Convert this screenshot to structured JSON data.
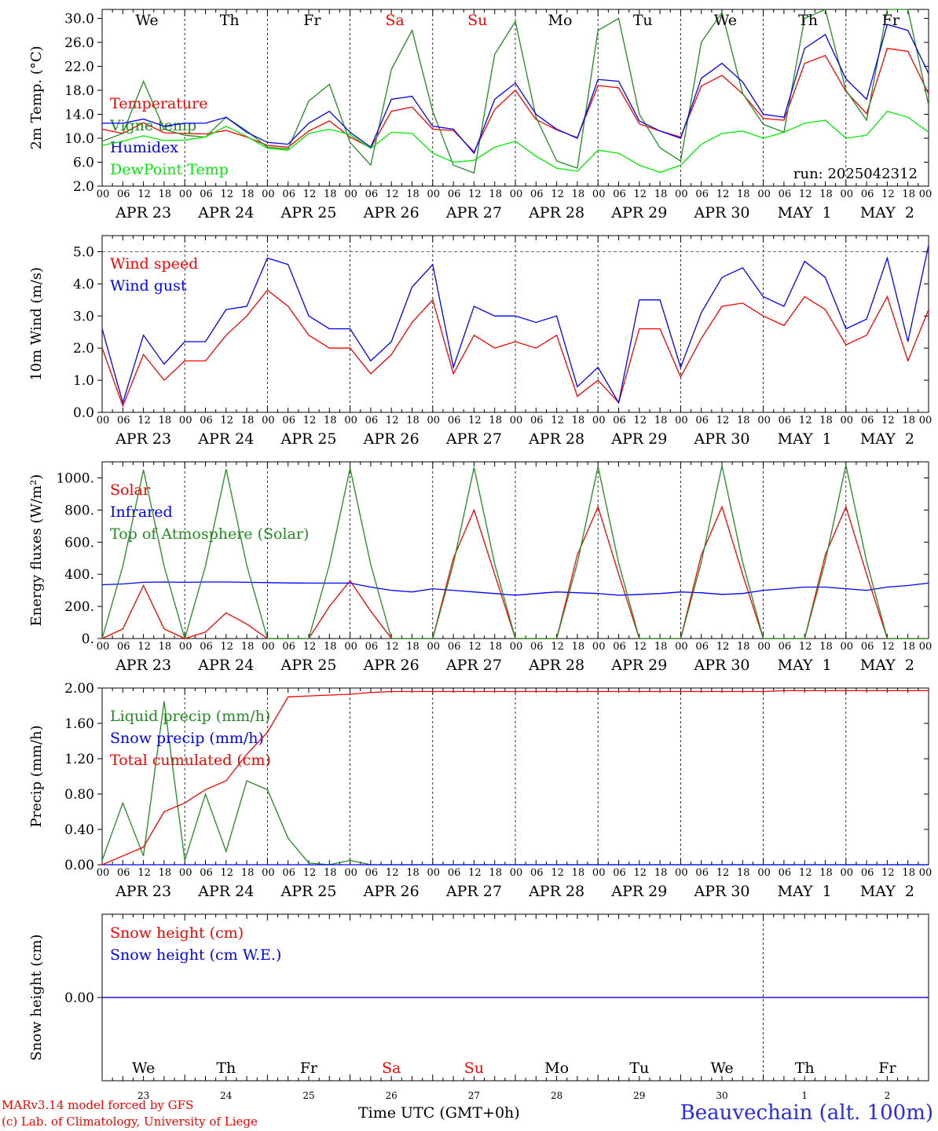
{
  "chart_data": {
    "type": "line",
    "run_label": "run: 2025042312",
    "day_letters": [
      "We",
      "Th",
      "Fr",
      "Sa",
      "Su",
      "Mo",
      "Tu",
      "We",
      "Th",
      "Fr"
    ],
    "weekend_color": "#ff0000",
    "date_labels": [
      "APR 23",
      "APR 24",
      "APR 25",
      "APR 26",
      "APR 27",
      "APR 28",
      "APR 29",
      "APR 30",
      "MAY  1",
      "MAY  2"
    ],
    "day_numbers": [
      "23",
      "24",
      "25",
      "26",
      "27",
      "28",
      "29",
      "30",
      "1",
      "2"
    ],
    "hour_ticks": [
      "00",
      "06",
      "12",
      "18"
    ],
    "hour_end_label": "00",
    "x_hours": [
      0,
      6,
      12,
      18,
      24,
      30,
      36,
      42,
      48,
      54,
      60,
      66,
      72,
      78,
      84,
      90,
      96,
      102,
      108,
      114,
      120,
      126,
      132,
      138,
      144,
      150,
      156,
      162,
      168,
      174,
      180,
      186,
      192,
      198,
      204,
      210,
      216,
      222,
      228,
      234,
      240
    ],
    "panels": [
      {
        "ylabel": "2m Temp. (°C)",
        "ylim": [
          2,
          31.5
        ],
        "ytick_values": [
          2,
          6,
          10,
          14,
          18,
          22,
          26,
          30
        ],
        "ytick_labels": [
          "2.0",
          "6.0",
          "10.0",
          "14.0",
          "18.0",
          "22.0",
          "26.0",
          "30.0"
        ],
        "series": [
          {
            "name": "Temperature",
            "color": "#ff0000",
            "values": [
              11.5,
              10.8,
              12.6,
              10.9,
              10.8,
              10.7,
              11.3,
              10.2,
              8.8,
              8.5,
              11.2,
              12.9,
              10.2,
              8.4,
              14.5,
              15.2,
              11.5,
              11.3,
              7.7,
              14.8,
              18.0,
              13.1,
              11.4,
              10.1,
              18.8,
              18.4,
              12.4,
              11.2,
              10.2,
              18.7,
              20.5,
              17.4,
              13.3,
              13.0,
              22.5,
              23.8,
              17.8,
              14.1,
              25.0,
              24.5,
              17.4
            ]
          },
          {
            "name": "Vigne temp",
            "color": "#228b22",
            "values": [
              9.5,
              10.8,
              19.5,
              11.5,
              10.5,
              10.2,
              13.5,
              11.2,
              8.5,
              8.2,
              16.2,
              19.0,
              9.3,
              5.5,
              21.5,
              28.0,
              14.5,
              5.5,
              4.2,
              24.0,
              29.5,
              13.5,
              6.2,
              5.0,
              28.0,
              30.0,
              14.0,
              8.4,
              6.2,
              26.0,
              31.0,
              17.5,
              12.3,
              11.0,
              30.0,
              31.5,
              18.0,
              13.0,
              31.5,
              31.5,
              15.5
            ]
          },
          {
            "name": "Humidex",
            "color": "#0000ff",
            "values": [
              12.5,
              12.5,
              13.2,
              12.0,
              12.5,
              12.5,
              13.5,
              11.0,
              9.3,
              9.0,
              12.5,
              14.5,
              11.0,
              8.5,
              16.5,
              17.0,
              12.0,
              11.5,
              7.5,
              16.5,
              19.2,
              14.0,
              11.5,
              10.0,
              19.8,
              19.5,
              12.9,
              11.2,
              10.0,
              20.0,
              22.5,
              19.4,
              14.0,
              13.5,
              25.0,
              27.3,
              19.9,
              16.5,
              29.0,
              28.0,
              20.8
            ]
          },
          {
            "name": "DewPoint Temp",
            "color": "#00ee00",
            "values": [
              8.8,
              9.5,
              10.4,
              9.6,
              9.7,
              10.2,
              12.0,
              10.3,
              8.3,
              8.0,
              10.8,
              11.5,
              10.6,
              8.3,
              11.0,
              10.8,
              7.5,
              6.0,
              6.3,
              8.5,
              9.5,
              7.0,
              5.0,
              4.5,
              8.0,
              7.5,
              5.5,
              4.3,
              5.5,
              9.0,
              10.8,
              11.2,
              10.0,
              11.0,
              12.5,
              13.0,
              10.0,
              10.5,
              14.5,
              13.5,
              11.0
            ]
          }
        ]
      },
      {
        "ylabel": "10m Wind (m/s)",
        "ylim": [
          0,
          5.5
        ],
        "ytick_values": [
          0,
          1,
          2,
          3,
          4,
          5
        ],
        "ytick_labels": [
          "0.0",
          "1.0",
          "2.0",
          "3.0",
          "4.0",
          "5.0"
        ],
        "dashed_line": 5.0,
        "series": [
          {
            "name": "Wind speed",
            "color": "#ff0000",
            "values": [
              2.0,
              0.2,
              1.8,
              1.0,
              1.6,
              1.6,
              2.4,
              3.0,
              3.8,
              3.3,
              2.4,
              2.0,
              2.0,
              1.2,
              1.8,
              2.8,
              3.5,
              1.2,
              2.4,
              2.0,
              2.2,
              2.0,
              2.4,
              0.5,
              1.0,
              0.3,
              2.6,
              2.6,
              1.1,
              2.3,
              3.3,
              3.4,
              3.0,
              2.7,
              3.6,
              3.2,
              2.1,
              2.4,
              3.6,
              1.6,
              3.2
            ]
          },
          {
            "name": "Wind gust",
            "color": "#0000ff",
            "values": [
              2.6,
              0.3,
              2.4,
              1.5,
              2.2,
              2.2,
              3.2,
              3.3,
              4.8,
              4.6,
              3.0,
              2.6,
              2.6,
              1.6,
              2.2,
              3.9,
              4.6,
              1.4,
              3.3,
              3.0,
              3.0,
              2.8,
              3.0,
              0.8,
              1.4,
              0.3,
              3.5,
              3.5,
              1.4,
              3.1,
              4.2,
              4.5,
              3.6,
              3.3,
              4.7,
              4.2,
              2.6,
              2.9,
              4.8,
              2.2,
              5.2
            ]
          }
        ]
      },
      {
        "ylabel": "Energy fluxes (W/m²)",
        "ylim": [
          0,
          1100
        ],
        "ytick_values": [
          0,
          200,
          400,
          600,
          800,
          1000
        ],
        "ytick_labels": [
          "0.",
          "200.",
          "400.",
          "600.",
          "800.",
          "1000."
        ],
        "series": [
          {
            "name": "Solar",
            "color": "#ff0000",
            "values": [
              0,
              60,
              330,
              60,
              0,
              40,
              160,
              90,
              0,
              0,
              0,
              200,
              360,
              170,
              0,
              0,
              0,
              500,
              800,
              400,
              0,
              0,
              0,
              520,
              820,
              400,
              0,
              0,
              0,
              520,
              820,
              400,
              0,
              0,
              0,
              520,
              820,
              400,
              0,
              0,
              0
            ]
          },
          {
            "name": "Infrared",
            "color": "#0000ff",
            "values": [
              335,
              340,
              350,
              352,
              350,
              352,
              352,
              350,
              348,
              346,
              345,
              345,
              345,
              320,
              300,
              290,
              310,
              300,
              290,
              280,
              270,
              280,
              290,
              285,
              280,
              270,
              275,
              280,
              290,
              285,
              275,
              280,
              300,
              310,
              320,
              320,
              310,
              300,
              320,
              330,
              345
            ]
          },
          {
            "name": "Top of Atmosphere (Solar)",
            "color": "#228b22",
            "values": [
              0,
              450,
              1050,
              450,
              0,
              450,
              1055,
              455,
              0,
              0,
              0,
              460,
              1060,
              460,
              0,
              0,
              0,
              465,
              1065,
              465,
              0,
              0,
              0,
              470,
              1070,
              470,
              0,
              0,
              0,
              475,
              1075,
              475,
              0,
              0,
              0,
              480,
              1080,
              480,
              0,
              0,
              0
            ]
          }
        ]
      },
      {
        "ylabel": "Precip (mm/h)",
        "ylim": [
          0,
          2.0
        ],
        "ytick_values": [
          0,
          0.4,
          0.8,
          1.2,
          1.6,
          2.0
        ],
        "ytick_labels": [
          "0.00",
          "0.40",
          "0.80",
          "1.20",
          "1.60",
          "2.00"
        ],
        "series": [
          {
            "name": "Liquid precip (mm/h)",
            "color": "#228b22",
            "values": [
              0.05,
              0.7,
              0.1,
              1.85,
              0.05,
              0.8,
              0.15,
              0.95,
              0.85,
              0.3,
              0.02,
              0.0,
              0.05,
              0.0,
              0.0,
              0.0,
              0.0,
              0.0,
              0.0,
              0.0,
              0.0,
              0.0,
              0.0,
              0.0,
              0.0,
              0.0,
              0.0,
              0.0,
              0.0,
              0.0,
              0.0,
              0.0,
              0.0,
              0.0,
              0.0,
              0.0,
              0.0,
              0.0,
              0.0,
              0.0,
              0.0
            ]
          },
          {
            "name": "Snow precip (mm/h)",
            "color": "#0000ff",
            "values": [
              0,
              0,
              0,
              0,
              0,
              0,
              0,
              0,
              0,
              0,
              0,
              0,
              0,
              0,
              0,
              0,
              0,
              0,
              0,
              0,
              0,
              0,
              0,
              0,
              0,
              0,
              0,
              0,
              0,
              0,
              0,
              0,
              0,
              0,
              0,
              0,
              0,
              0,
              0,
              0,
              0
            ]
          },
          {
            "name": "Total cumulated (cm)",
            "color": "#ff0000",
            "values": [
              0.0,
              0.1,
              0.2,
              0.6,
              0.7,
              0.85,
              0.95,
              1.25,
              1.5,
              1.9,
              1.91,
              1.92,
              1.93,
              1.95,
              1.96,
              1.96,
              1.96,
              1.96,
              1.96,
              1.96,
              1.96,
              1.96,
              1.96,
              1.96,
              1.96,
              1.96,
              1.96,
              1.96,
              1.96,
              1.96,
              1.96,
              1.96,
              1.96,
              1.97,
              1.97,
              1.97,
              1.97,
              1.97,
              1.97,
              1.97,
              1.97
            ]
          }
        ]
      },
      {
        "ylabel": "Snow height (cm)",
        "ylim": [
          -1,
          1
        ],
        "ytick_values": [
          0
        ],
        "ytick_labels": [
          "0.00"
        ],
        "series": [
          {
            "name": "Snow height (cm)",
            "color": "#ff0000",
            "values": [
              0,
              0,
              0,
              0,
              0,
              0,
              0,
              0,
              0,
              0,
              0,
              0,
              0,
              0,
              0,
              0,
              0,
              0,
              0,
              0,
              0,
              0,
              0,
              0,
              0,
              0,
              0,
              0,
              0,
              0,
              0,
              0,
              0,
              0,
              0,
              0,
              0,
              0,
              0,
              0,
              0
            ]
          },
          {
            "name": "Snow height (cm W.E.)",
            "color": "#0000ff",
            "values": [
              0,
              0,
              0,
              0,
              0,
              0,
              0,
              0,
              0,
              0,
              0,
              0,
              0,
              0,
              0,
              0,
              0,
              0,
              0,
              0,
              0,
              0,
              0,
              0,
              0,
              0,
              0,
              0,
              0,
              0,
              0,
              0,
              0,
              0,
              0,
              0,
              0,
              0,
              0,
              0,
              0
            ]
          }
        ]
      }
    ]
  },
  "footer": {
    "credit_line1": "MARv3.14 model forced by GFS",
    "credit_line2": "(c) Lab. of Climatology, University of Liege",
    "axis_title": "Time UTC (GMT+0h)",
    "station": "Beauvechain (alt. 100m)"
  }
}
